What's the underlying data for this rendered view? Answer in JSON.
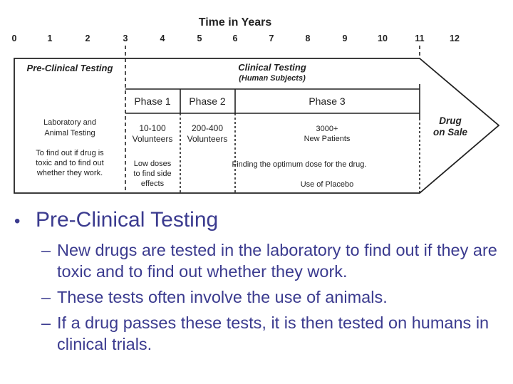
{
  "diagram": {
    "axis_title": "Time in Years",
    "ticks": [
      "0",
      "1",
      "2",
      "3",
      "4",
      "5",
      "6",
      "7",
      "8",
      "9",
      "10",
      "11",
      "12"
    ],
    "pre_clinical": {
      "title": "Pre-Clinical Testing",
      "line1": "Laboratory and",
      "line2": "Animal Testing",
      "desc1": "To find out if drug is",
      "desc2": "toxic and to find out",
      "desc3": "whether they work."
    },
    "clinical": {
      "title": "Clinical Testing",
      "subtitle": "(Human Subjects)"
    },
    "phases": [
      {
        "label": "Phase 1",
        "line1": "10-100",
        "line2": "Volunteers",
        "note1": "Low doses",
        "note2": "to find side",
        "note3": "effects"
      },
      {
        "label": "Phase 2",
        "line1": "200-400",
        "line2": "Volunteers"
      },
      {
        "label": "Phase 3",
        "line1": "3000+",
        "line2": "New Patients"
      }
    ],
    "optimum_dose": "Finding the optimum dose for the drug.",
    "placebo": "Use of Placebo",
    "drug_on_sale": {
      "line1": "Drug",
      "line2": "on Sale"
    }
  },
  "bullets": {
    "main": "Pre-Clinical Testing",
    "subs": [
      "New drugs are tested in the laboratory to find out if they are toxic and to find out whether they work.",
      "These tests often involve the use of animals.",
      "If a drug passes these tests, it is then tested on humans in clinical trials."
    ]
  },
  "colors": {
    "bullet_text": "#3b3b8f",
    "diagram_ink": "#222222"
  }
}
